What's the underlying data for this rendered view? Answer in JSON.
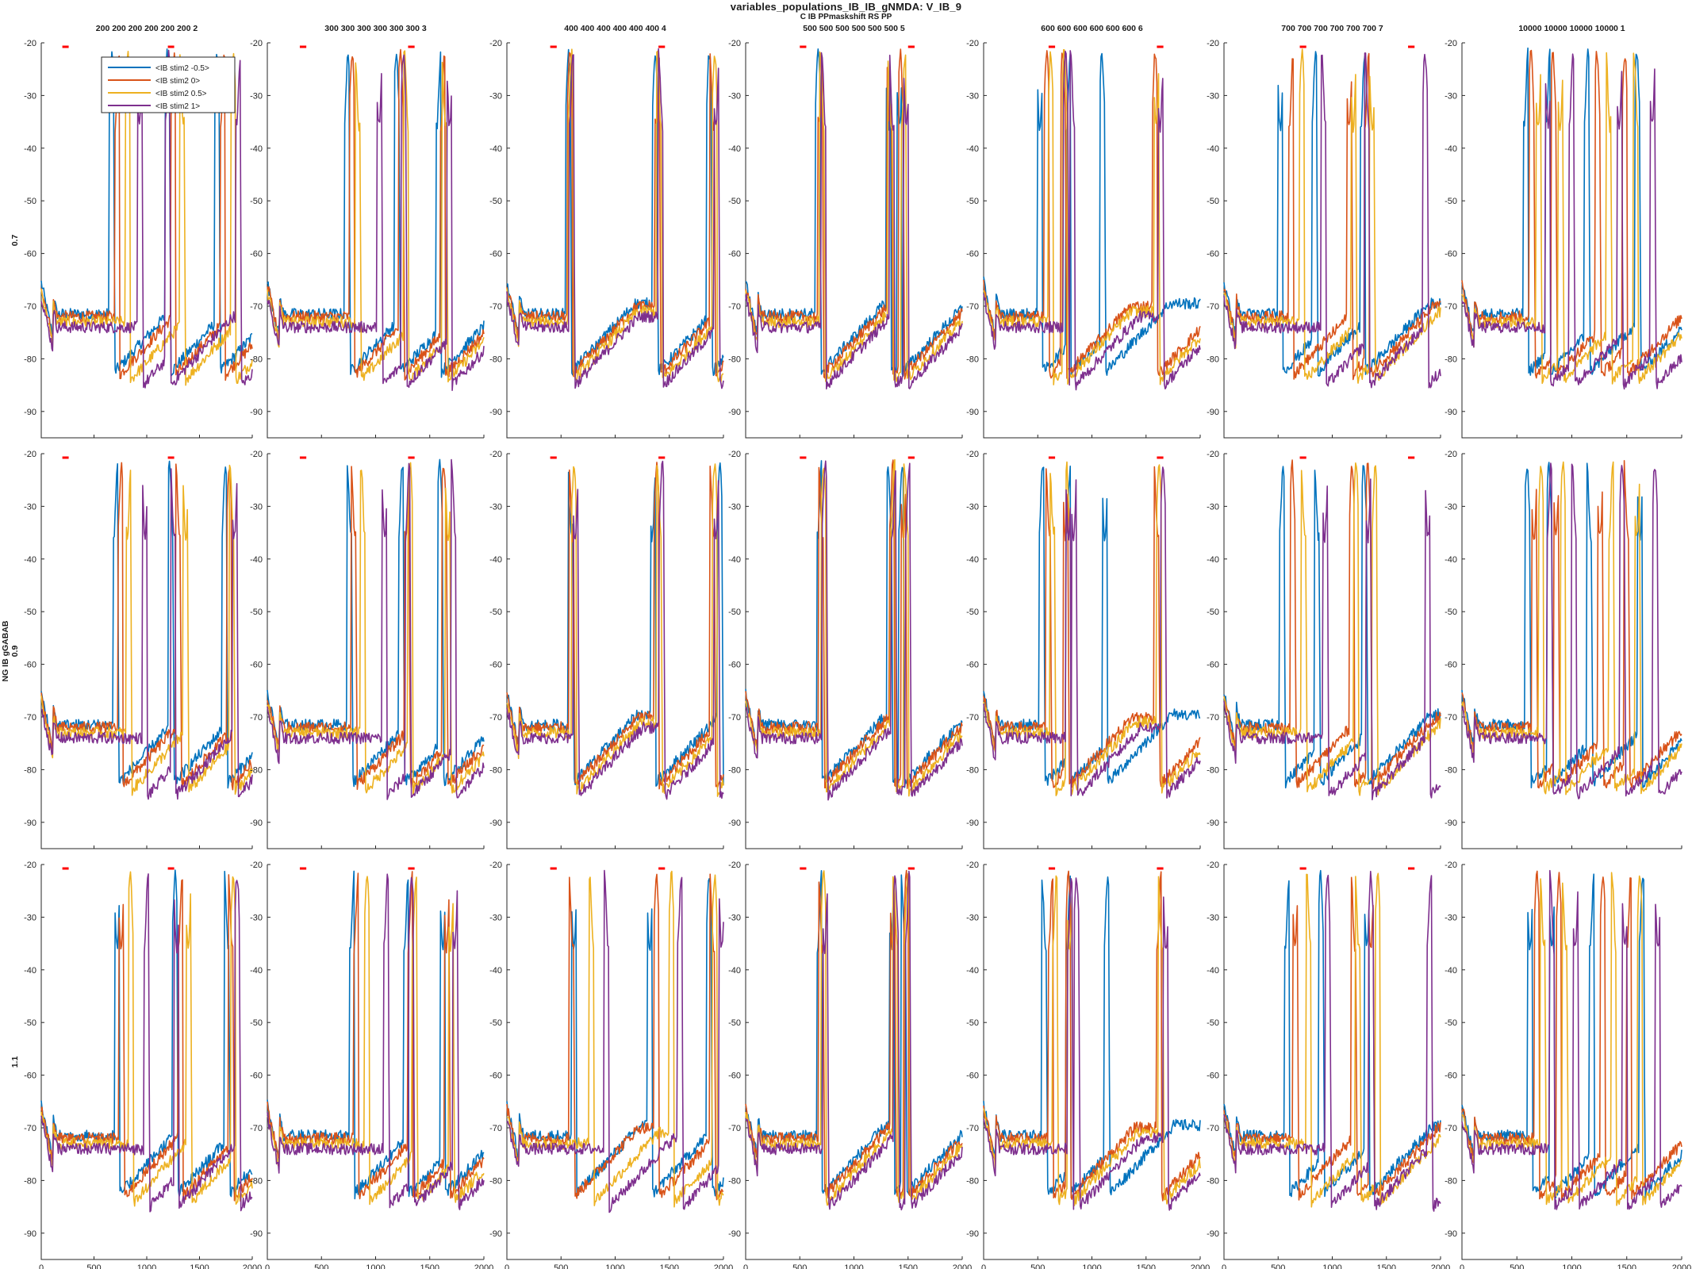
{
  "figure": {
    "title": "variables_populations_IB_IB_gNMDA: V_IB_9",
    "subtitle": "C IB PPmaskshift RS PP"
  },
  "chart_data": {
    "type": "line",
    "layout": "small-multiples grid 3 rows x 7 columns, shared axes",
    "column_labels": [
      "200 200 200 200 200 200 2",
      "300 300 300 300 300 300 3",
      "400 400 400 400 400 400 4",
      "500 500 500 500 500 500 5",
      "600 600 600 600 600 600 6",
      "700 700 700 700 700 700 7",
      "10000 10000 10000 10000 1"
    ],
    "row_labels": [
      {
        "line1": "",
        "line2": "0.7"
      },
      {
        "line1": "NG IB gGABAB",
        "line2": "0.9"
      },
      {
        "line1": "",
        "line2": "1.1"
      }
    ],
    "xlim": [
      0,
      2000
    ],
    "ylim": [
      -95,
      -20
    ],
    "xticks": [
      0,
      500,
      1000,
      1500,
      2000
    ],
    "yticks": [
      -20,
      -30,
      -40,
      -50,
      -60,
      -70,
      -80,
      -90
    ],
    "grid": false,
    "legend_position": "top-left of first panel",
    "series": [
      {
        "name": "<IB stim2 -0.5>",
        "color": "#0072BD"
      },
      {
        "name": "<IB stim2 0>",
        "color": "#D95319"
      },
      {
        "name": "<IB stim2 0.5>",
        "color": "#EDB120"
      },
      {
        "name": "<IB stim2 1>",
        "color": "#7E2F8E"
      }
    ],
    "stimulus_marker_color": "#ff0000",
    "stimulus_markers": [
      [
        [
          200,
          260
        ],
        [
          1200,
          1260
        ]
      ],
      [
        [
          300,
          360
        ],
        [
          1300,
          1360
        ]
      ],
      [
        [
          400,
          460
        ],
        [
          1400,
          1460
        ]
      ],
      [
        [
          500,
          560
        ],
        [
          1500,
          1560
        ]
      ],
      [
        [
          600,
          660
        ],
        [
          1600,
          1660
        ]
      ],
      [
        [
          700,
          760
        ],
        [
          1700,
          1760
        ]
      ]
    ],
    "spike_times": [
      [
        [
          [
            650,
            1180,
            1650
          ],
          [
            700,
            1230,
            1700
          ],
          [
            800,
            1320,
            1800
          ],
          [
            920,
            1180,
            1850
          ]
        ],
        [
          [
            690,
            1210,
            1720
          ],
          [
            730,
            1280,
            1760
          ],
          [
            810,
            1350,
            1790
          ],
          [
            960,
            1230,
            1820
          ]
        ],
        [
          [
            700,
            1250,
            1740
          ],
          [
            740,
            1300,
            1780
          ],
          [
            830,
            1380,
            1800
          ],
          [
            980,
            1260,
            1840
          ]
        ]
      ],
      [
        [
          [
            720,
            1180,
            1560
          ],
          [
            760,
            1220,
            1600
          ],
          [
            820,
            1260,
            1620
          ],
          [
            1020,
            1240,
            1660
          ]
        ],
        [
          [
            740,
            1220,
            1580
          ],
          [
            780,
            1270,
            1620
          ],
          [
            860,
            1300,
            1650
          ],
          [
            1060,
            1280,
            1700
          ]
        ],
        [
          [
            760,
            1260,
            1600
          ],
          [
            800,
            1300,
            1640
          ],
          [
            900,
            1340,
            1680
          ],
          [
            1080,
            1310,
            1720
          ]
        ]
      ],
      [
        [
          [
            550,
            1350,
            1850
          ],
          [
            560,
            1370,
            1880
          ],
          [
            570,
            1390,
            1900
          ],
          [
            580,
            1400,
            1920
          ]
        ],
        [
          [
            570,
            1330,
            1950
          ],
          [
            580,
            1360,
            1880
          ],
          [
            600,
            1390,
            1900
          ],
          [
            620,
            1410,
            1920
          ]
        ],
        [
          [
            600,
            1300,
            1850
          ],
          [
            580,
            1360,
            1880
          ],
          [
            760,
            1500,
            1900
          ],
          [
            900,
            1580,
            1960
          ]
        ]
      ],
      [
        [
          [
            650,
            1300,
            1400
          ],
          [
            670,
            1310,
            1420
          ],
          [
            690,
            1320,
            1440
          ],
          [
            700,
            1330,
            1460
          ]
        ],
        [
          [
            660,
            1310,
            1420
          ],
          [
            680,
            1330,
            1440
          ],
          [
            700,
            1340,
            1460
          ],
          [
            710,
            1350,
            1480
          ]
        ],
        [
          [
            660,
            1330,
            1440
          ],
          [
            680,
            1340,
            1460
          ],
          [
            700,
            1360,
            1470
          ],
          [
            720,
            1370,
            1480
          ]
        ]
      ],
      [
        [
          [
            500,
            760,
            1080
          ],
          [
            560,
            720,
            1560
          ],
          [
            600,
            730,
            1580
          ],
          [
            740,
            800,
            1620
          ]
        ],
        [
          [
            520,
            760,
            1100
          ],
          [
            580,
            740,
            1580
          ],
          [
            620,
            760,
            1600
          ],
          [
            760,
            820,
            1640
          ]
        ],
        [
          [
            540,
            760,
            1120
          ],
          [
            600,
            760,
            1600
          ],
          [
            640,
            780,
            1620
          ],
          [
            780,
            840,
            1660
          ]
        ]
      ],
      [
        [
          [
            500,
            820,
            1260
          ],
          [
            600,
            1140,
            1300
          ],
          [
            700,
            1180,
            1350
          ],
          [
            900,
            1300,
            1840
          ]
        ],
        [
          [
            520,
            840,
            1280
          ],
          [
            620,
            1160,
            1320
          ],
          [
            720,
            1200,
            1370
          ],
          [
            920,
            1320,
            1860
          ]
        ],
        [
          [
            560,
            880,
            1300
          ],
          [
            640,
            1180,
            1340
          ],
          [
            760,
            1220,
            1400
          ],
          [
            940,
            1340,
            1880
          ]
        ]
      ],
      [
        [
          [
            560,
            760,
            1120,
            1580
          ],
          [
            620,
            820,
            1220,
            1460
          ],
          [
            680,
            880,
            1320,
            1560
          ],
          [
            760,
            980,
            1420,
            1720
          ]
        ],
        [
          [
            580,
            780,
            1140,
            1600
          ],
          [
            640,
            840,
            1240,
            1480
          ],
          [
            700,
            900,
            1340,
            1580
          ],
          [
            780,
            1000,
            1440,
            1740
          ]
        ],
        [
          [
            600,
            800,
            1160,
            1620
          ],
          [
            660,
            860,
            1260,
            1500
          ],
          [
            720,
            920,
            1360,
            1600
          ],
          [
            800,
            1020,
            1460,
            1760
          ]
        ]
      ]
    ]
  }
}
